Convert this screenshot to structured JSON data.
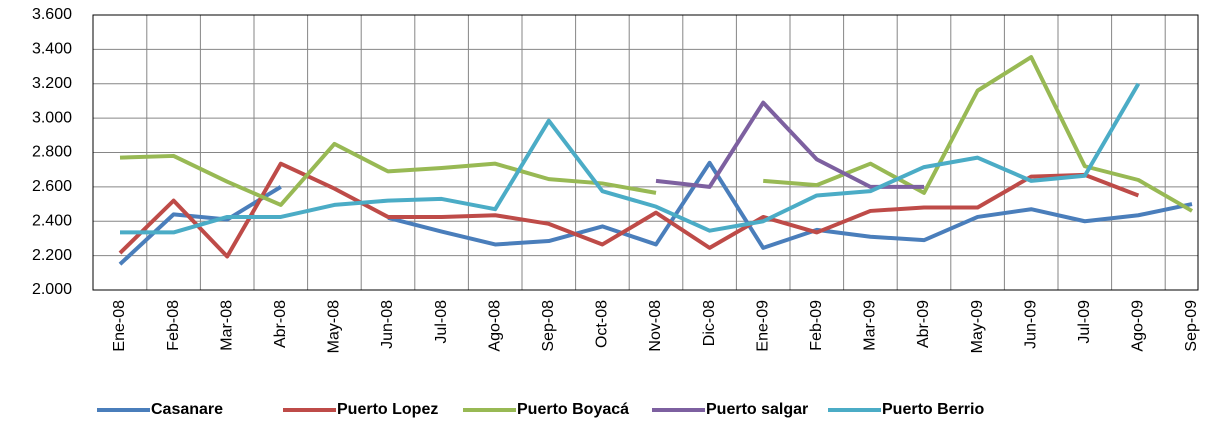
{
  "chart_data": {
    "type": "line",
    "categories": [
      "Ene-08",
      "Feb-08",
      "Mar-08",
      "Abr-08",
      "May-08",
      "Jun-08",
      "Jul-08",
      "Ago-08",
      "Sep-08",
      "Oct-08",
      "Nov-08",
      "Dic-08",
      "Ene-09",
      "Feb-09",
      "Mar-09",
      "Abr-09",
      "May-09",
      "Jun-09",
      "Jul-09",
      "Ago-09",
      "Sep-09"
    ],
    "series": [
      {
        "name": "Casanare",
        "color": "#4a7ebb",
        "values": [
          2150,
          2440,
          2410,
          2600,
          null,
          2420,
          2340,
          2265,
          2285,
          2370,
          2265,
          2740,
          2245,
          2350,
          2310,
          2290,
          2425,
          2470,
          2400,
          2435,
          2500
        ]
      },
      {
        "name": "Puerto Lopez",
        "color": "#be4b48",
        "values": [
          2215,
          2520,
          2195,
          2735,
          2590,
          2425,
          2425,
          2435,
          2385,
          2265,
          2450,
          2245,
          2425,
          2335,
          2460,
          2480,
          2480,
          2660,
          2670,
          2550,
          null
        ]
      },
      {
        "name": "Puerto Boyacá",
        "color": "#98b954",
        "values": [
          2770,
          2780,
          2630,
          2495,
          2850,
          2690,
          2710,
          2735,
          2645,
          2620,
          2565,
          null,
          2635,
          2610,
          2735,
          2565,
          3160,
          3355,
          2720,
          2640,
          2460
        ]
      },
      {
        "name": "Puerto salgar",
        "color": "#7d60a0",
        "values": [
          null,
          null,
          null,
          null,
          null,
          null,
          null,
          null,
          null,
          null,
          2635,
          2600,
          3090,
          2760,
          2600,
          2600,
          null,
          null,
          null,
          null,
          null
        ]
      },
      {
        "name": "Puerto Berrio",
        "color": "#4bacc6",
        "values": [
          2335,
          2335,
          2425,
          2425,
          2495,
          2520,
          2530,
          2470,
          2985,
          2575,
          2485,
          2345,
          2400,
          2550,
          2575,
          2715,
          2770,
          2635,
          2665,
          3200,
          null
        ]
      }
    ],
    "ylim": [
      2000,
      3600
    ],
    "yticks": [
      {
        "value": 2000,
        "label": "2.000"
      },
      {
        "value": 2200,
        "label": "2.200"
      },
      {
        "value": 2400,
        "label": "2.400"
      },
      {
        "value": 2600,
        "label": "2.600"
      },
      {
        "value": 2800,
        "label": "2.800"
      },
      {
        "value": 3000,
        "label": "3.000"
      },
      {
        "value": 3200,
        "label": "3.200"
      },
      {
        "value": 3400,
        "label": "3.400"
      },
      {
        "value": 3600,
        "label": "3.600"
      }
    ],
    "grid": true,
    "legend": "bottom"
  }
}
